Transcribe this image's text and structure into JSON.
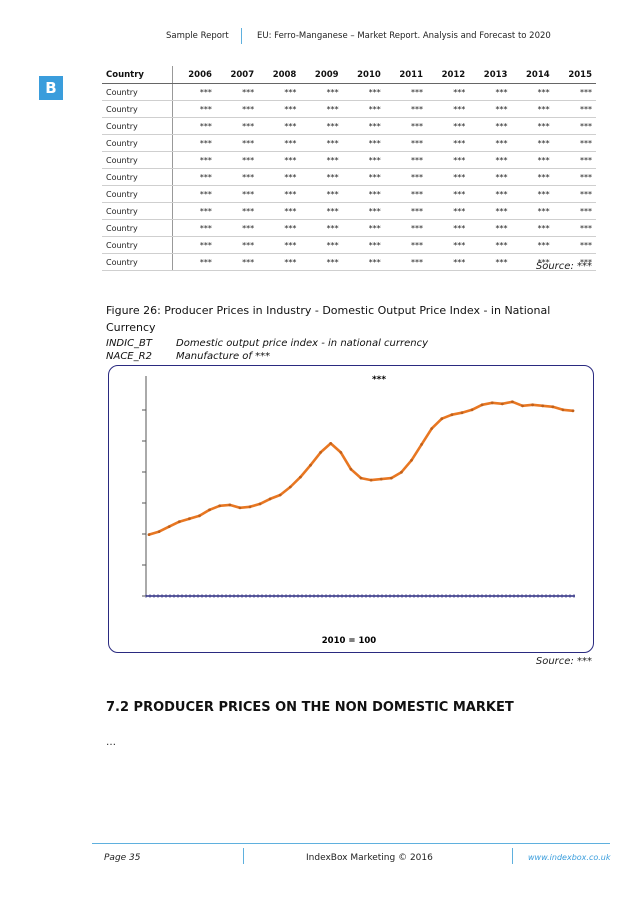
{
  "header": {
    "left": "Sample Report",
    "right": "EU: Ferro-Manganese – Market Report. Analysis and Forecast to 2020"
  },
  "logo": {
    "letter": "B",
    "color": "#3a9ddc"
  },
  "table": {
    "headers": [
      "Country",
      "2006",
      "2007",
      "2008",
      "2009",
      "2010",
      "2011",
      "2012",
      "2013",
      "2014",
      "2015"
    ],
    "rows": [
      [
        "Country",
        "***",
        "***",
        "***",
        "***",
        "***",
        "***",
        "***",
        "***",
        "***",
        "***"
      ],
      [
        "Country",
        "***",
        "***",
        "***",
        "***",
        "***",
        "***",
        "***",
        "***",
        "***",
        "***"
      ],
      [
        "Country",
        "***",
        "***",
        "***",
        "***",
        "***",
        "***",
        "***",
        "***",
        "***",
        "***"
      ],
      [
        "Country",
        "***",
        "***",
        "***",
        "***",
        "***",
        "***",
        "***",
        "***",
        "***",
        "***"
      ],
      [
        "Country",
        "***",
        "***",
        "***",
        "***",
        "***",
        "***",
        "***",
        "***",
        "***",
        "***"
      ],
      [
        "Country",
        "***",
        "***",
        "***",
        "***",
        "***",
        "***",
        "***",
        "***",
        "***",
        "***"
      ],
      [
        "Country",
        "***",
        "***",
        "***",
        "***",
        "***",
        "***",
        "***",
        "***",
        "***",
        "***"
      ],
      [
        "Country",
        "***",
        "***",
        "***",
        "***",
        "***",
        "***",
        "***",
        "***",
        "***",
        "***"
      ],
      [
        "Country",
        "***",
        "***",
        "***",
        "***",
        "***",
        "***",
        "***",
        "***",
        "***",
        "***"
      ],
      [
        "Country",
        "***",
        "***",
        "***",
        "***",
        "***",
        "***",
        "***",
        "***",
        "***",
        "***"
      ],
      [
        "Country",
        "***",
        "***",
        "***",
        "***",
        "***",
        "***",
        "***",
        "***",
        "***",
        "***"
      ]
    ],
    "source": "Source: ***"
  },
  "figure": {
    "title": "Figure 26: Producer Prices in Industry - Domestic Output Price Index - in National Currency",
    "meta": [
      {
        "key": "INDIC_BT",
        "value": "Domestic output price index - in national currency"
      },
      {
        "key": "NACE_R2",
        "value": "Manufacture of ***"
      }
    ],
    "source": "Source: ***"
  },
  "chart_data": {
    "type": "line",
    "title": "***",
    "xlabel": "2010 = 100",
    "ylabel": "",
    "series": [
      {
        "color": "#e87722",
        "values": [
          60,
          63,
          68,
          73,
          76,
          79,
          85,
          89,
          90,
          87,
          88,
          91,
          96,
          100,
          108,
          118,
          130,
          143,
          152,
          143,
          126,
          117,
          115,
          116,
          117,
          123,
          135,
          151,
          167,
          177,
          181,
          183,
          186,
          191,
          193,
          192,
          194,
          190,
          191,
          190,
          189,
          186,
          185
        ]
      }
    ]
  },
  "section": {
    "title": "7.2 PRODUCER PRICES ON THE NON DOMESTIC MARKET",
    "body": "…"
  },
  "footer": {
    "page": "Page 35",
    "copyright": "IndexBox Marketing © 2016",
    "website": "www.indexbox.co.uk"
  }
}
